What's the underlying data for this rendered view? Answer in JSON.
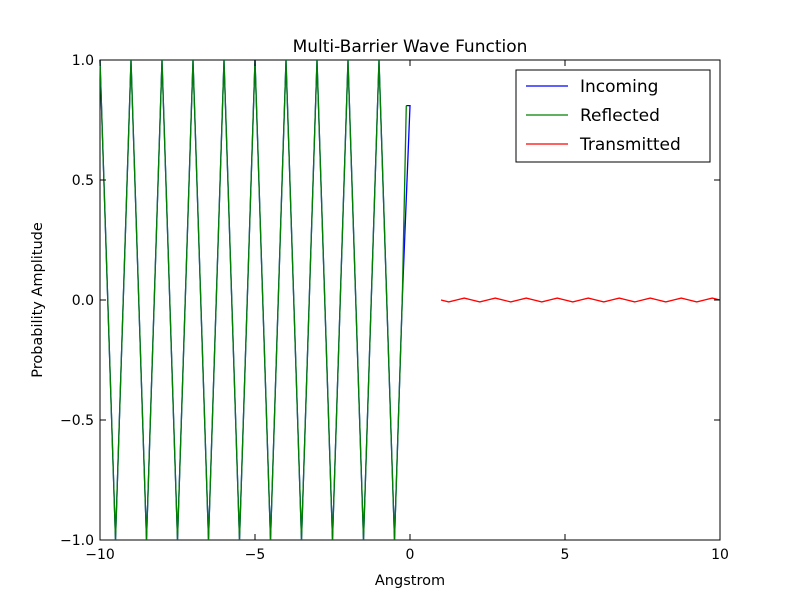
{
  "chart_data": {
    "type": "line",
    "title": "Multi-Barrier Wave Function",
    "xlabel": "Angstrom",
    "ylabel": "Probability Amplitude",
    "xlim": [
      -10,
      10
    ],
    "ylim": [
      -1.0,
      1.0
    ],
    "x_ticks": [
      -10,
      -5,
      0,
      5,
      10
    ],
    "x_tick_labels": [
      "−10",
      "−5",
      "0",
      "5",
      "10"
    ],
    "y_ticks": [
      -1.0,
      -0.5,
      0.0,
      0.5,
      1.0
    ],
    "y_tick_labels": [
      "−1.0",
      "−0.5",
      "0.0",
      "0.5",
      "1.0"
    ],
    "grid": false,
    "legend_position": "top-right",
    "series": [
      {
        "name": "Incoming",
        "color": "#0000ff",
        "x": [
          -10.0,
          -9.75,
          -9.5,
          -9.25,
          -9.0,
          -8.75,
          -8.5,
          -8.25,
          -8.0,
          -7.75,
          -7.5,
          -7.25,
          -7.0,
          -6.75,
          -6.5,
          -6.25,
          -6.0,
          -5.75,
          -5.5,
          -5.25,
          -5.0,
          -4.75,
          -4.5,
          -4.25,
          -4.0,
          -3.75,
          -3.5,
          -3.25,
          -3.0,
          -2.75,
          -2.5,
          -2.25,
          -2.0,
          -1.75,
          -1.5,
          -1.25,
          -1.0,
          -0.75,
          -0.5,
          -0.25,
          0.0,
          -0.12
        ],
        "y": [
          1.0,
          0.0,
          -1.0,
          0.0,
          1.0,
          0.0,
          -1.0,
          0.0,
          1.0,
          0.0,
          -1.0,
          0.0,
          1.0,
          0.0,
          -1.0,
          0.0,
          1.0,
          0.0,
          -1.0,
          0.0,
          1.0,
          0.0,
          -1.0,
          0.0,
          1.0,
          0.0,
          -1.0,
          0.0,
          1.0,
          0.0,
          -1.0,
          0.0,
          1.0,
          0.0,
          -1.0,
          0.0,
          1.0,
          0.0,
          -1.0,
          0.0,
          0.81,
          0.81
        ]
      },
      {
        "name": "Reflected",
        "color": "#008000",
        "x": [
          -10.0,
          -9.75,
          -9.5,
          -9.25,
          -9.0,
          -8.75,
          -8.5,
          -8.25,
          -8.0,
          -7.75,
          -7.5,
          -7.25,
          -7.0,
          -6.75,
          -6.5,
          -6.25,
          -6.0,
          -5.75,
          -5.5,
          -5.25,
          -5.0,
          -4.75,
          -4.5,
          -4.25,
          -4.0,
          -3.75,
          -3.5,
          -3.25,
          -3.0,
          -2.75,
          -2.5,
          -2.25,
          -2.0,
          -1.75,
          -1.5,
          -1.25,
          -1.0,
          -0.75,
          -0.5,
          -0.25,
          -0.12
        ],
        "y": [
          1.0,
          0.0,
          -1.0,
          0.0,
          1.0,
          0.0,
          -1.0,
          0.0,
          1.0,
          0.0,
          -1.0,
          0.0,
          1.0,
          0.0,
          -1.0,
          0.0,
          1.0,
          0.0,
          -1.0,
          0.0,
          1.0,
          0.0,
          -1.0,
          0.0,
          1.0,
          0.0,
          -1.0,
          0.0,
          1.0,
          0.0,
          -1.0,
          0.0,
          1.0,
          0.0,
          -1.0,
          0.0,
          1.0,
          0.0,
          -1.0,
          0.0,
          0.81
        ]
      },
      {
        "name": "Transmitted",
        "color": "#ff0000",
        "x": [
          1.0,
          1.25,
          1.5,
          1.75,
          2.0,
          2.25,
          2.5,
          2.75,
          3.0,
          3.25,
          3.5,
          3.75,
          4.0,
          4.25,
          4.5,
          4.75,
          5.0,
          5.25,
          5.5,
          5.75,
          6.0,
          6.25,
          6.5,
          6.75,
          7.0,
          7.25,
          7.5,
          7.75,
          8.0,
          8.25,
          8.5,
          8.75,
          9.0,
          9.25,
          9.5,
          9.75,
          10.0
        ],
        "y": [
          0.0,
          -0.008,
          0.0,
          0.008,
          0.0,
          -0.008,
          0.0,
          0.008,
          0.0,
          -0.008,
          0.0,
          0.008,
          0.0,
          -0.008,
          0.0,
          0.008,
          0.0,
          -0.008,
          0.0,
          0.008,
          0.0,
          -0.008,
          0.0,
          0.008,
          0.0,
          -0.008,
          0.0,
          0.008,
          0.0,
          -0.008,
          0.0,
          0.008,
          0.0,
          -0.008,
          0.0,
          0.008,
          0.0
        ]
      }
    ]
  }
}
